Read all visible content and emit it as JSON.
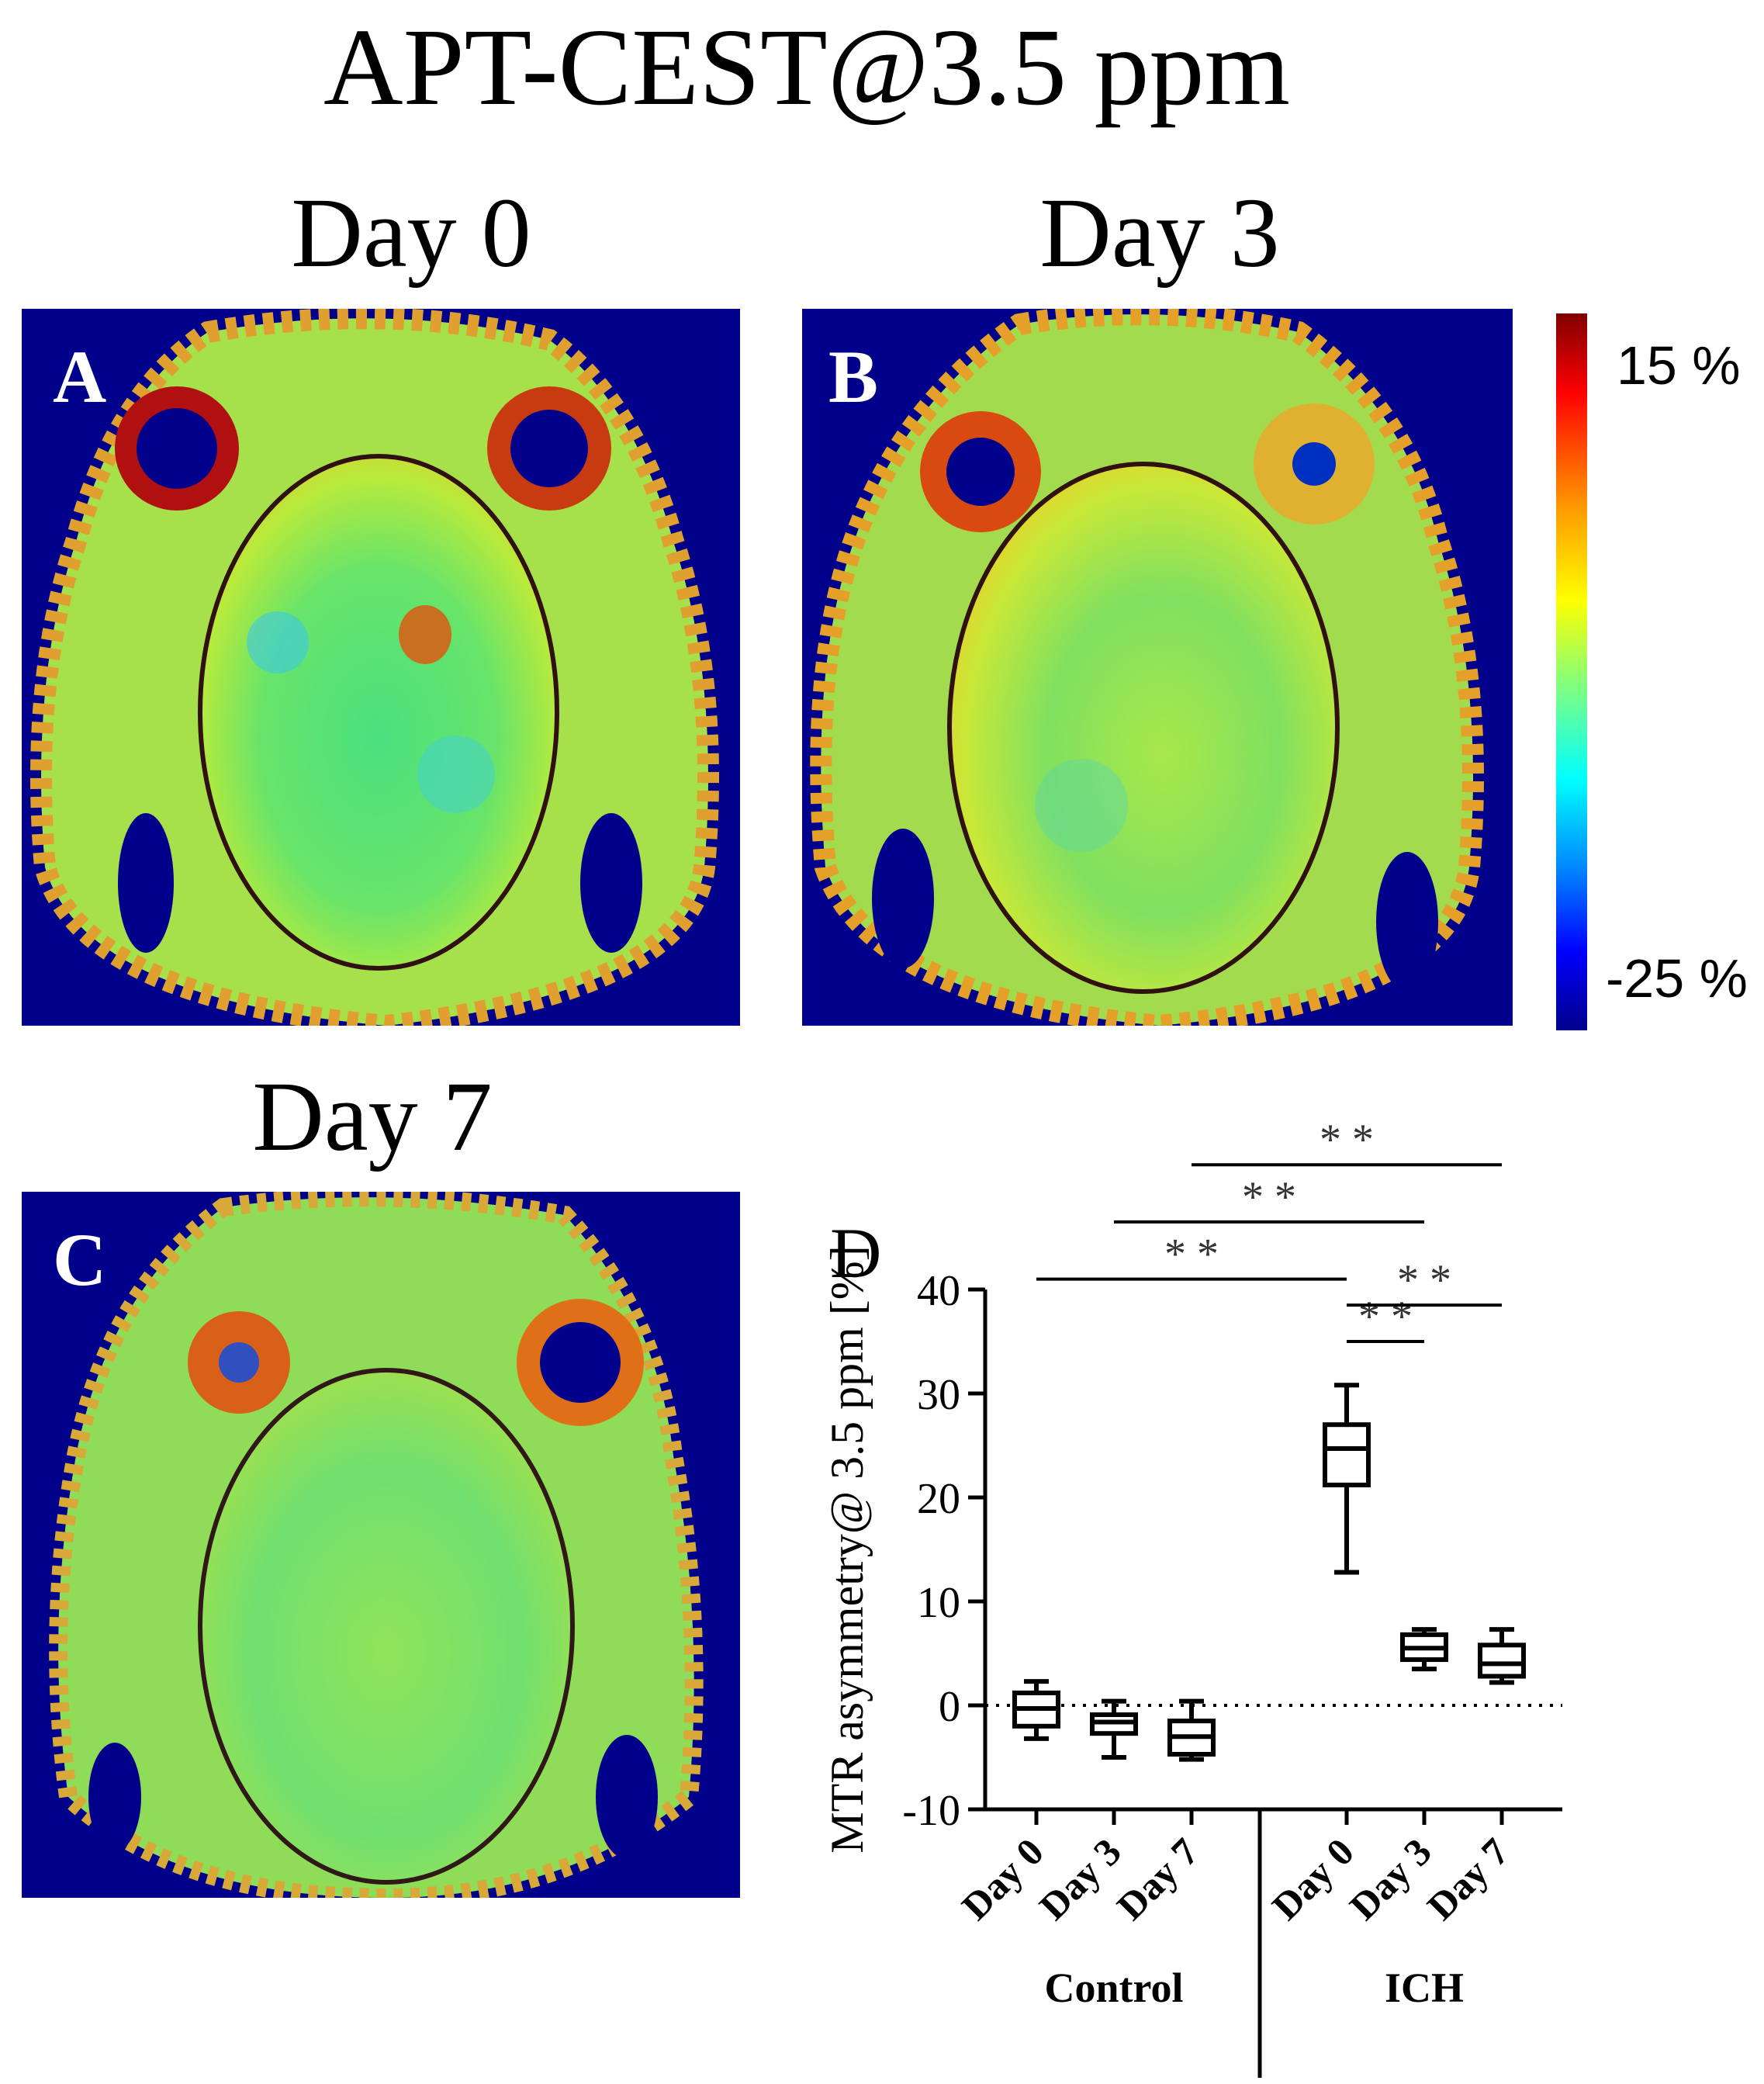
{
  "figure": {
    "title": "APT-CEST@3.5 ppm",
    "panels": [
      {
        "letter": "A",
        "day_label": "Day 0"
      },
      {
        "letter": "B",
        "day_label": "Day 3"
      },
      {
        "letter": "C",
        "day_label": "Day 7"
      }
    ],
    "colorbar": {
      "max_label": "15 %",
      "min_label": "-25 %",
      "range": [
        -25,
        15
      ]
    }
  },
  "chart_data": {
    "type": "box",
    "panel_letter": "D",
    "ylabel": "MTR asymmetry@ 3.5 ppm [%]",
    "ylim": [
      -10,
      40
    ],
    "yticks": [
      "40",
      "30",
      "20",
      "10",
      "0",
      "-10"
    ],
    "groups": [
      {
        "name": "Control",
        "categories": [
          "Day 0",
          "Day 3",
          "Day 7"
        ]
      },
      {
        "name": "ICH",
        "categories": [
          "Day 0",
          "Day 3",
          "Day 7"
        ]
      }
    ],
    "boxes": [
      {
        "group": "Control",
        "label": "Day 0",
        "min": -3.2,
        "q1": -2.0,
        "median": -0.3,
        "q3": 1.2,
        "max": 2.3
      },
      {
        "group": "Control",
        "label": "Day 3",
        "min": -5.0,
        "q1": -2.7,
        "median": -1.6,
        "q3": -0.9,
        "max": 0.4
      },
      {
        "group": "Control",
        "label": "Day 7",
        "min": -5.2,
        "q1": -4.7,
        "median": -3.0,
        "q3": -1.5,
        "max": 0.4
      },
      {
        "group": "ICH",
        "label": "Day 0",
        "min": 12.8,
        "q1": 21.2,
        "median": 24.7,
        "q3": 27.0,
        "max": 30.8
      },
      {
        "group": "ICH",
        "label": "Day 3",
        "min": 3.5,
        "q1": 4.4,
        "median": 5.5,
        "q3": 6.8,
        "max": 7.3
      },
      {
        "group": "ICH",
        "label": "Day 7",
        "min": 2.2,
        "q1": 2.8,
        "median": 4.0,
        "q3": 5.8,
        "max": 7.3
      }
    ],
    "reference_line": 0,
    "significance": [
      {
        "from": 0,
        "to": 3,
        "y": 41,
        "label": "* *"
      },
      {
        "from": 1,
        "to": 4,
        "y": 46.5,
        "label": "* *"
      },
      {
        "from": 2,
        "to": 5,
        "y": 52,
        "label": "* *"
      },
      {
        "from": 3,
        "to": 4,
        "y": 35,
        "label": "* *"
      },
      {
        "from": 3,
        "to": 5,
        "y": 38.5,
        "label": "* *"
      }
    ]
  }
}
